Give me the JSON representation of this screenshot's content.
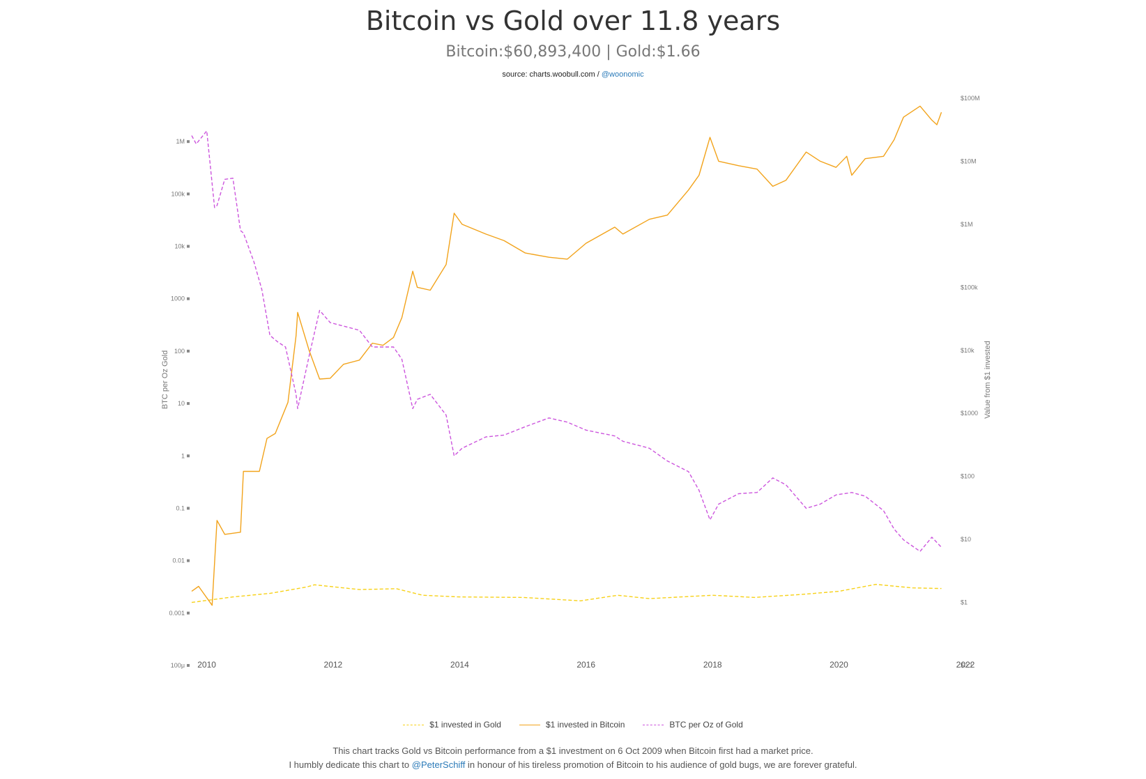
{
  "header": {
    "title": "Bitcoin vs Gold over 11.8 years",
    "subtitle": "Bitcoin:$60,893,400 | Gold:$1.66",
    "source_prefix": "source: charts.woobull.com / ",
    "source_link": "@woonomic"
  },
  "footer": {
    "line1": "This chart tracks Gold vs Bitcoin performance from a $1 investment on 6 Oct 2009 when Bitcoin first had a market price.",
    "line2_prefix": "I humbly dedicate this chart to ",
    "line2_link": "@PeterSchiff",
    "line2_suffix": " in honour of his tireless promotion of Bitcoin to his audience of gold bugs, we are forever grateful."
  },
  "chart_data": {
    "type": "line",
    "title": "Bitcoin vs Gold over 11.8 years",
    "subtitle": "Bitcoin:$60,893,400 | Gold:$1.66",
    "x_axis": {
      "type": "date",
      "range": [
        "2009-10-06",
        "2022-01-01"
      ],
      "tick_labels": [
        "2010",
        "2012",
        "2014",
        "2016",
        "2018",
        "2020",
        "2022"
      ]
    },
    "y_left": {
      "label": "BTC per Oz Gold",
      "scale": "log",
      "range": [
        0.0001,
        10000000
      ],
      "tick_values": [
        0.0001,
        0.001,
        0.01,
        0.1,
        1,
        10,
        100,
        1000,
        10000,
        100000,
        1000000
      ],
      "tick_labels": [
        "100μ",
        "0.001",
        "0.01",
        "0.1",
        "1",
        "10",
        "100",
        "1000",
        "10k",
        "100k",
        "1M"
      ]
    },
    "y_right": {
      "label": "Value from $1 invested",
      "scale": "log",
      "range": [
        0.1,
        100000000
      ],
      "tick_values": [
        0.1,
        1,
        10,
        100,
        1000,
        10000,
        100000,
        1000000,
        10000000,
        100000000
      ],
      "tick_labels": [
        "$0.1",
        "$1",
        "$10",
        "$100",
        "$1000",
        "$10k",
        "$100k",
        "$1M",
        "$10M",
        "$100M"
      ]
    },
    "legend_position": "bottom-center",
    "series": [
      {
        "name": "$1 invested in Gold",
        "axis": "right",
        "color": "#f7d117",
        "dash": "dashed",
        "x": [
          "2009-10-06",
          "2010-06-01",
          "2011-01-01",
          "2011-08-01",
          "2011-09-15",
          "2012-06-01",
          "2013-01-01",
          "2013-06-01",
          "2014-01-01",
          "2015-01-01",
          "2015-12-01",
          "2016-07-01",
          "2017-01-01",
          "2018-01-01",
          "2018-09-01",
          "2019-06-01",
          "2020-01-01",
          "2020-08-01",
          "2021-03-01",
          "2021-08-15"
        ],
        "y": [
          1.0,
          1.22,
          1.39,
          1.76,
          1.9,
          1.6,
          1.65,
          1.3,
          1.22,
          1.2,
          1.06,
          1.3,
          1.15,
          1.3,
          1.2,
          1.34,
          1.5,
          1.93,
          1.7,
          1.66
        ]
      },
      {
        "name": "$1 invested in Bitcoin",
        "axis": "right",
        "color": "#f2a31b",
        "dash": "solid",
        "x": [
          "2009-10-06",
          "2009-11-15",
          "2010-02-01",
          "2010-03-01",
          "2010-04-15",
          "2010-07-15",
          "2010-08-01",
          "2010-11-01",
          "2010-12-15",
          "2011-02-01",
          "2011-04-15",
          "2011-06-01",
          "2011-06-10",
          "2011-08-15",
          "2011-10-15",
          "2011-12-15",
          "2012-03-01",
          "2012-06-01",
          "2012-08-15",
          "2012-10-15",
          "2012-12-15",
          "2013-02-01",
          "2013-04-05",
          "2013-05-01",
          "2013-07-15",
          "2013-10-15",
          "2013-11-30",
          "2014-01-15",
          "2014-06-01",
          "2014-09-15",
          "2015-01-15",
          "2015-06-01",
          "2015-09-15",
          "2016-01-01",
          "2016-06-15",
          "2016-08-01",
          "2017-01-01",
          "2017-04-15",
          "2017-08-15",
          "2017-10-15",
          "2017-12-17",
          "2018-02-05",
          "2018-06-01",
          "2018-09-15",
          "2018-12-15",
          "2019-03-01",
          "2019-06-26",
          "2019-09-15",
          "2019-12-15",
          "2020-02-15",
          "2020-03-15",
          "2020-06-01",
          "2020-09-15",
          "2020-11-15",
          "2021-01-08",
          "2021-04-14",
          "2021-06-21",
          "2021-07-20",
          "2021-08-15"
        ],
        "y": [
          1.5,
          1.8,
          0.9,
          20,
          12,
          13,
          120,
          120,
          400,
          480,
          1500,
          17000,
          40000,
          10000,
          3500,
          3600,
          6000,
          7000,
          13000,
          12000,
          16000,
          33000,
          180000,
          100000,
          90000,
          230000,
          1500000,
          1000000,
          700000,
          550000,
          350000,
          300000,
          280000,
          500000,
          900000,
          700000,
          1200000,
          1400000,
          3500000,
          6000000,
          24000000,
          10000000,
          8500000,
          7500000,
          4000000,
          5000000,
          14000000,
          10000000,
          8000000,
          12000000,
          6000000,
          11000000,
          12000000,
          22000000,
          50000000,
          75000000,
          45000000,
          38000000,
          60000000
        ]
      },
      {
        "name": "BTC per Oz of Gold",
        "axis": "left",
        "color": "#cc55dd",
        "dash": "dashed",
        "x": [
          "2009-10-06",
          "2009-11-01",
          "2010-01-01",
          "2010-02-15",
          "2010-03-01",
          "2010-04-15",
          "2010-06-01",
          "2010-07-15",
          "2010-08-01",
          "2010-10-01",
          "2010-11-15",
          "2011-01-01",
          "2011-02-15",
          "2011-04-01",
          "2011-06-01",
          "2011-06-10",
          "2011-08-15",
          "2011-10-15",
          "2011-12-15",
          "2012-03-01",
          "2012-06-01",
          "2012-08-15",
          "2012-12-15",
          "2013-02-01",
          "2013-04-05",
          "2013-05-01",
          "2013-07-15",
          "2013-10-15",
          "2013-11-30",
          "2014-01-15",
          "2014-06-01",
          "2014-09-15",
          "2015-01-15",
          "2015-06-01",
          "2015-09-15",
          "2016-01-01",
          "2016-06-15",
          "2016-08-01",
          "2017-01-01",
          "2017-04-15",
          "2017-08-15",
          "2017-10-15",
          "2017-12-17",
          "2018-02-05",
          "2018-06-01",
          "2018-09-15",
          "2018-12-15",
          "2019-03-01",
          "2019-06-26",
          "2019-09-15",
          "2019-12-15",
          "2020-03-15",
          "2020-06-01",
          "2020-09-15",
          "2020-11-15",
          "2021-01-08",
          "2021-04-14",
          "2021-06-21",
          "2021-08-15"
        ],
        "y": [
          1300000,
          900000,
          1600000,
          55000,
          60000,
          190000,
          200000,
          20000,
          18000,
          5000,
          1500,
          200,
          150,
          120,
          15,
          8,
          80,
          600,
          350,
          300,
          250,
          120,
          120,
          70,
          8,
          12,
          15,
          6,
          1,
          1.4,
          2.3,
          2.5,
          3.6,
          5.3,
          4.4,
          3.1,
          2.4,
          1.9,
          1.4,
          0.8,
          0.5,
          0.22,
          0.06,
          0.12,
          0.19,
          0.2,
          0.38,
          0.28,
          0.1,
          0.12,
          0.18,
          0.2,
          0.17,
          0.09,
          0.04,
          0.025,
          0.015,
          0.028,
          0.018
        ]
      }
    ]
  }
}
